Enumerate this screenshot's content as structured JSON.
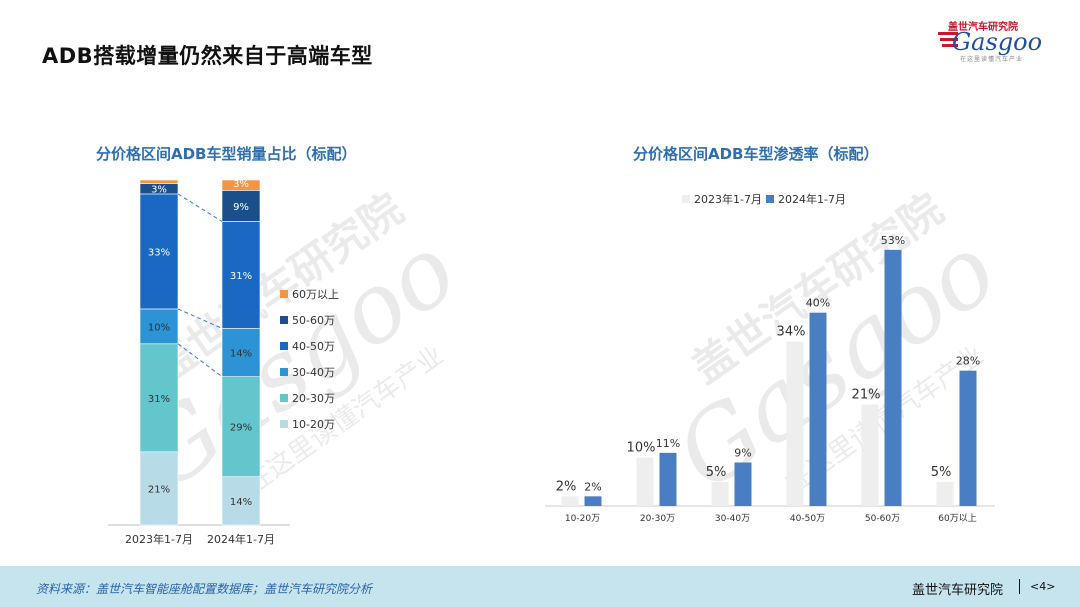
{
  "page": {
    "title": "ADB搭载增量仍然来自于高端车型",
    "logo_text": "Gasgoo",
    "logo_cn": "盖世汽车研究院",
    "logo_tagline": "在这里读懂汽车产业",
    "watermark_cn": "盖世汽车研究院",
    "watermark_text": "Gasgoo",
    "watermark_tagline": "在这里读懂汽车产业"
  },
  "footer": {
    "source": "资料来源：盖世汽车智能座舱配置数据库；盖世汽车研究院分析",
    "org": "盖世汽车研究院",
    "page": "<4>"
  },
  "colors": {
    "seg_10_20": "#b8dbe8",
    "seg_20_30": "#62c6cc",
    "seg_30_40": "#2c93d5",
    "seg_40_50": "#1a68c2",
    "seg_50_60": "#1b4f8c",
    "seg_60p": "#f39543",
    "bar_2023": "#eeeeee",
    "bar_2024": "#4a7ec2",
    "title_blue": "#2e6fb0"
  },
  "chart_data": [
    {
      "type": "bar",
      "stacked": true,
      "title": "分价格区间ADB车型销量占比（标配）",
      "categories": [
        "2023年1-7月",
        "2024年1-7月"
      ],
      "series": [
        {
          "name": "10-20万",
          "values": [
            21,
            14
          ],
          "labels": [
            "21%",
            "14%"
          ]
        },
        {
          "name": "20-30万",
          "values": [
            31,
            29
          ],
          "labels": [
            "31%",
            "29%"
          ]
        },
        {
          "name": "30-40万",
          "values": [
            10,
            14
          ],
          "labels": [
            "10%",
            "14%"
          ]
        },
        {
          "name": "40-50万",
          "values": [
            33,
            31
          ],
          "labels": [
            "33%",
            "31%"
          ]
        },
        {
          "name": "50-60万",
          "values": [
            3,
            9
          ],
          "labels": [
            "3%",
            "9%"
          ]
        },
        {
          "name": "60万以上",
          "values": [
            1,
            3
          ],
          "labels": [
            "1%",
            "3%"
          ]
        }
      ],
      "legend_position": "right",
      "ylim": [
        0,
        100
      ]
    },
    {
      "type": "bar",
      "title": "分价格区间ADB车型渗透率（标配）",
      "categories": [
        "10-20万",
        "20-30万",
        "30-40万",
        "40-50万",
        "50-60万",
        "60万以上"
      ],
      "series": [
        {
          "name": "2023年1-7月",
          "values": [
            2,
            10,
            5,
            34,
            21,
            5
          ],
          "labels": [
            "2%",
            "10%",
            "5%",
            "34%",
            "21%",
            "5%"
          ]
        },
        {
          "name": "2024年1-7月",
          "values": [
            2,
            11,
            9,
            40,
            53,
            28
          ],
          "labels": [
            "2%",
            "11%",
            "9%",
            "40%",
            "53%",
            "28%"
          ]
        }
      ],
      "legend_position": "top",
      "ylim": [
        0,
        60
      ]
    }
  ]
}
